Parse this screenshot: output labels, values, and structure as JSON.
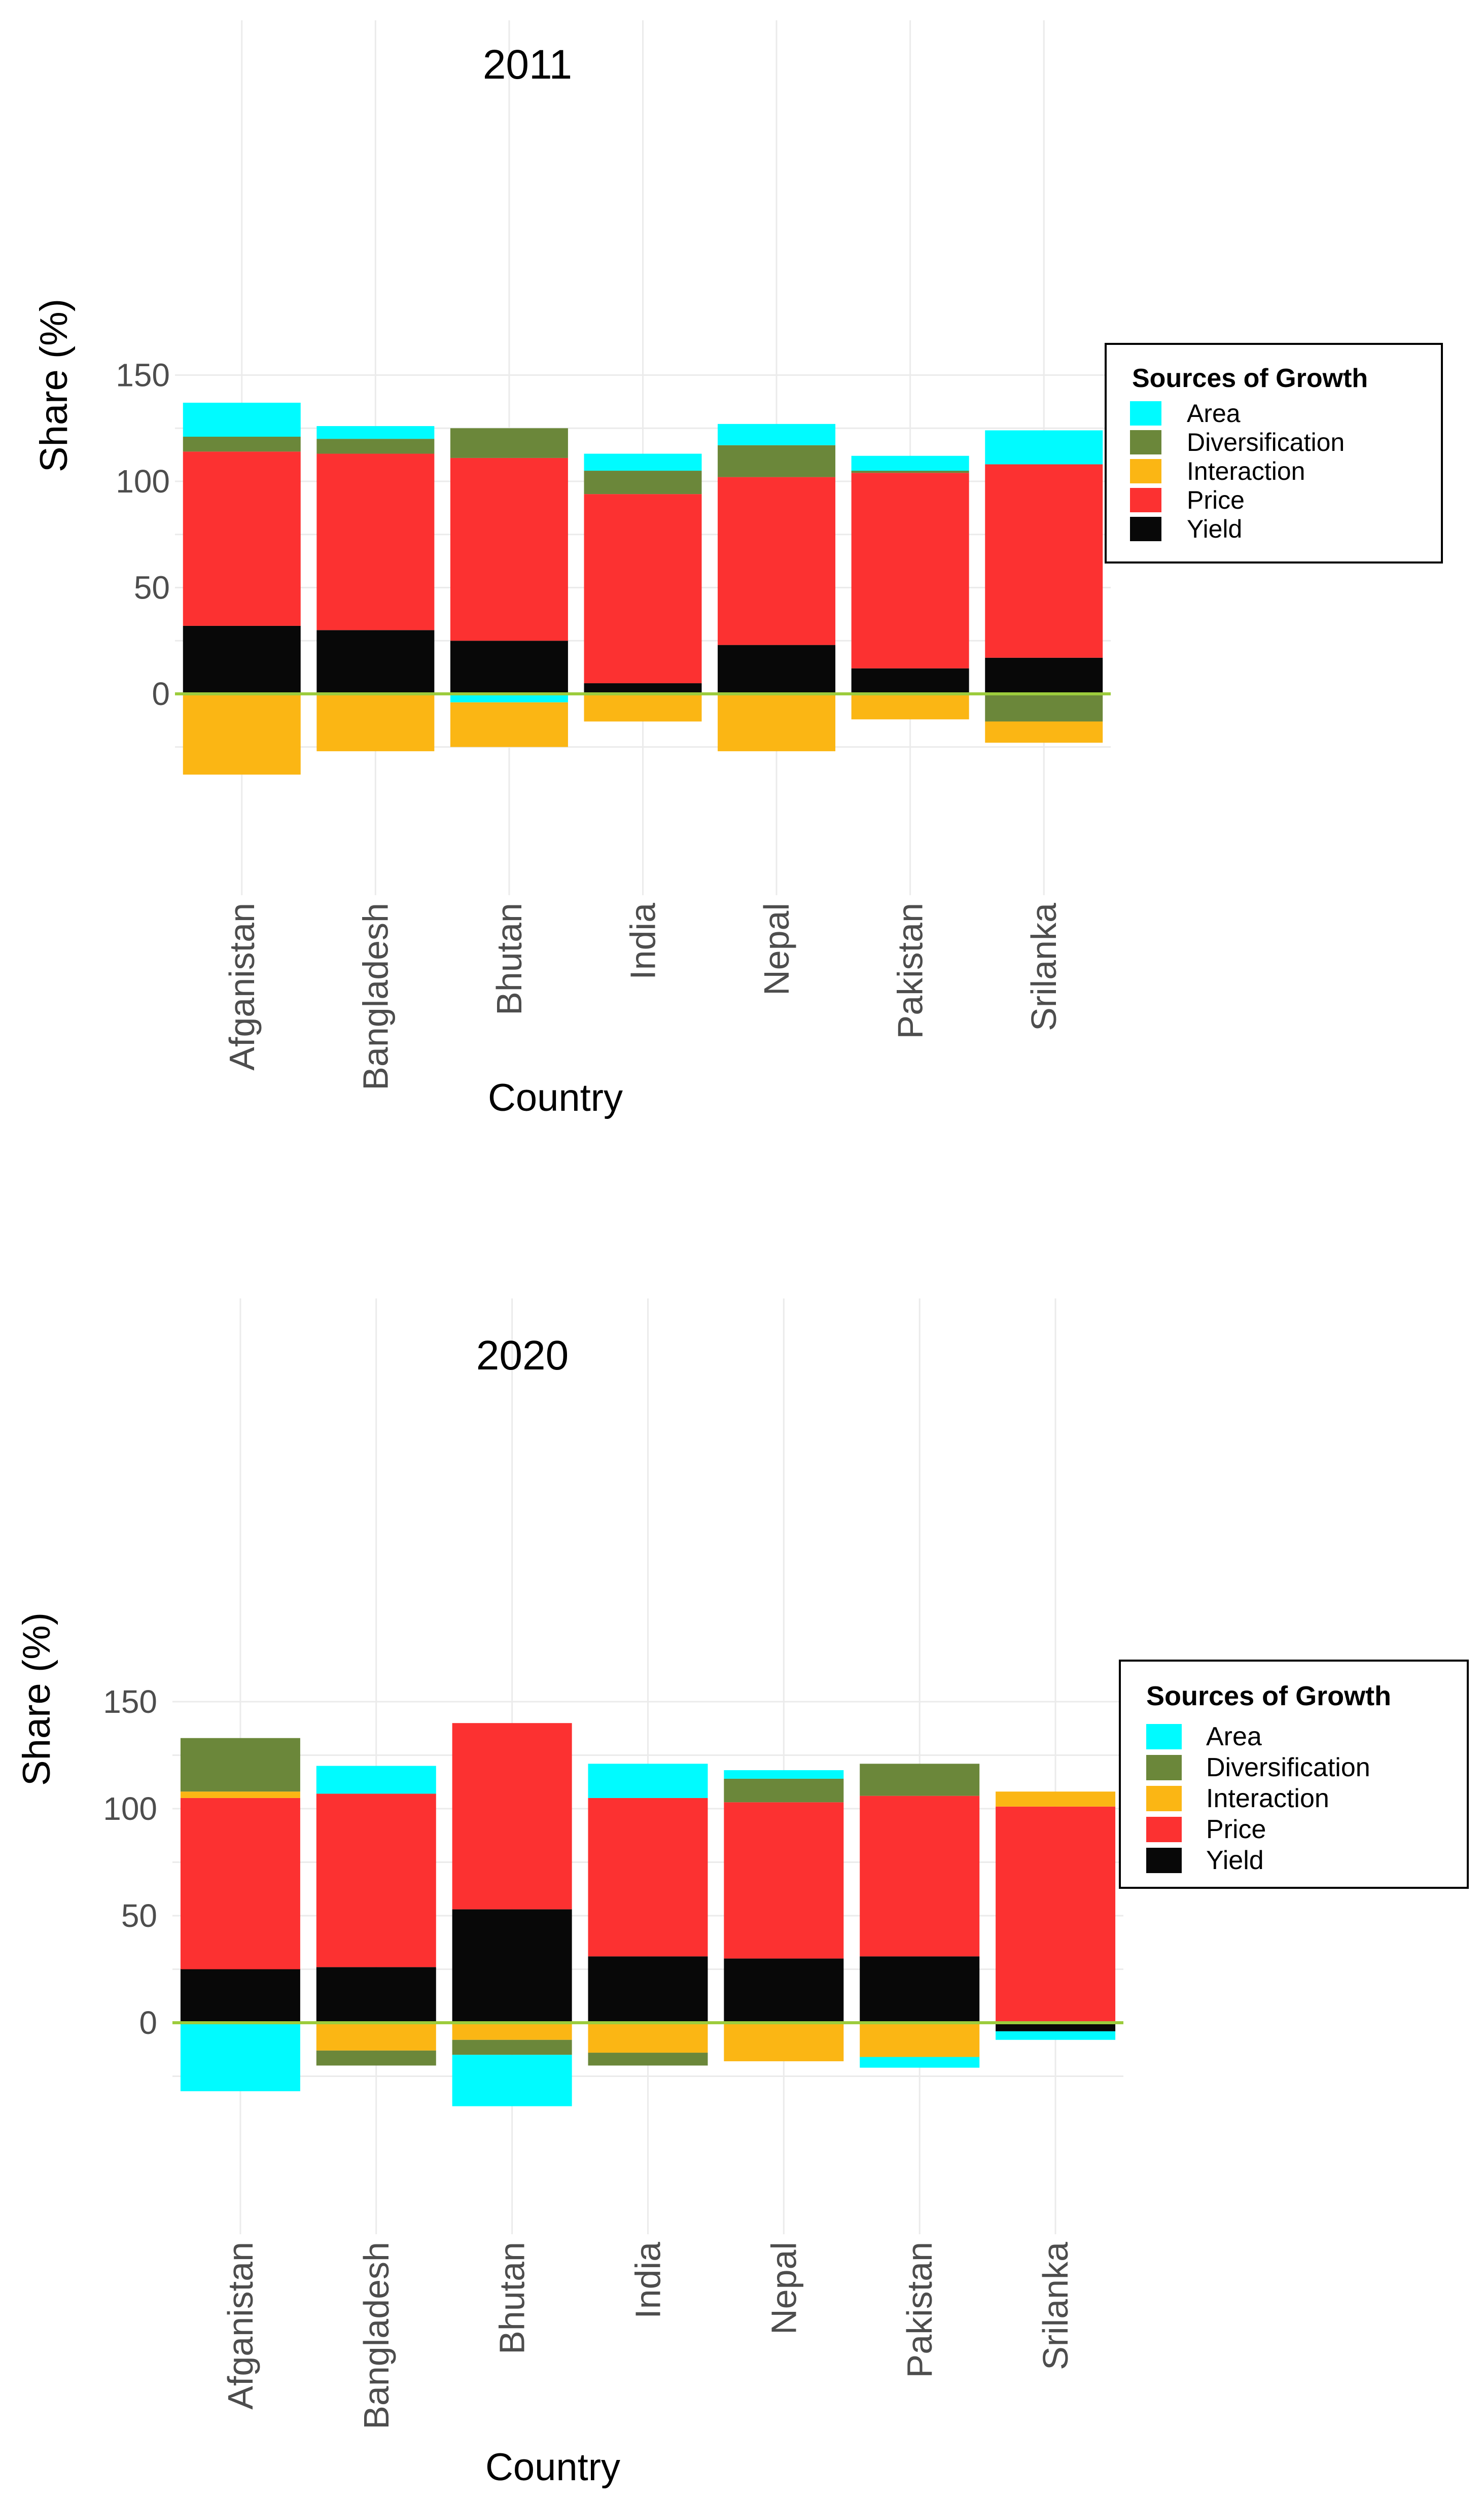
{
  "categories": [
    "Afganistan",
    "Bangladesh",
    "Bhutan",
    "India",
    "Nepal",
    "Pakistan",
    "Srilanka"
  ],
  "colors": {
    "Area": "#00fbff",
    "Diversification": "#6b873a",
    "Interaction": "#fbb614",
    "Price": "#fc3131",
    "Yield": "#080808",
    "zero_line": "#9ccc3c"
  },
  "legend": {
    "title": "Sources of Growth",
    "items": [
      "Area",
      "Diversification",
      "Interaction",
      "Price",
      "Yield"
    ]
  },
  "chart_data": [
    {
      "type": "bar",
      "stacked": true,
      "title": "2011",
      "xlabel": "Country",
      "ylabel": "Share (%)",
      "ylim": [
        -47,
        152
      ],
      "yticks": [
        0,
        50,
        100,
        150
      ],
      "grid": true,
      "legend_position": "right",
      "categories": [
        "Afganistan",
        "Bangladesh",
        "Bhutan",
        "India",
        "Nepal",
        "Pakistan",
        "Srilanka"
      ],
      "series": [
        {
          "name": "Yield",
          "values": [
            32,
            30,
            25,
            5,
            23,
            12,
            17
          ]
        },
        {
          "name": "Price",
          "values": [
            82,
            83,
            86,
            89,
            79,
            92,
            91
          ]
        },
        {
          "name": "Diversification",
          "values": [
            7,
            7,
            14,
            11,
            15,
            1,
            -13
          ]
        },
        {
          "name": "Area",
          "values": [
            16,
            6,
            -4,
            8,
            10,
            7,
            16
          ]
        },
        {
          "name": "Interaction",
          "values": [
            -38,
            -27,
            -21,
            -13,
            -27,
            -12,
            -10
          ]
        }
      ]
    },
    {
      "type": "bar",
      "stacked": true,
      "title": "2020",
      "xlabel": "Country",
      "ylabel": "Share (%)",
      "ylim": [
        -49,
        170
      ],
      "yticks": [
        0,
        50,
        100,
        150
      ],
      "grid": true,
      "legend_position": "right",
      "categories": [
        "Afganistan",
        "Bangladesh",
        "Bhutan",
        "India",
        "Nepal",
        "Pakistan",
        "Srilanka"
      ],
      "series": [
        {
          "name": "Yield",
          "values": [
            25,
            26,
            53,
            31,
            30,
            31,
            -4
          ]
        },
        {
          "name": "Price",
          "values": [
            80,
            81,
            87,
            74,
            73,
            75,
            101
          ]
        },
        {
          "name": "Interaction",
          "values": [
            3,
            -13,
            -8,
            -14,
            -18,
            -16,
            7
          ]
        },
        {
          "name": "Diversification",
          "values": [
            25,
            -7,
            -7,
            -6,
            11,
            15,
            0
          ]
        },
        {
          "name": "Area",
          "values": [
            -32,
            13,
            -24,
            16,
            4,
            -5,
            -4
          ]
        }
      ]
    }
  ]
}
